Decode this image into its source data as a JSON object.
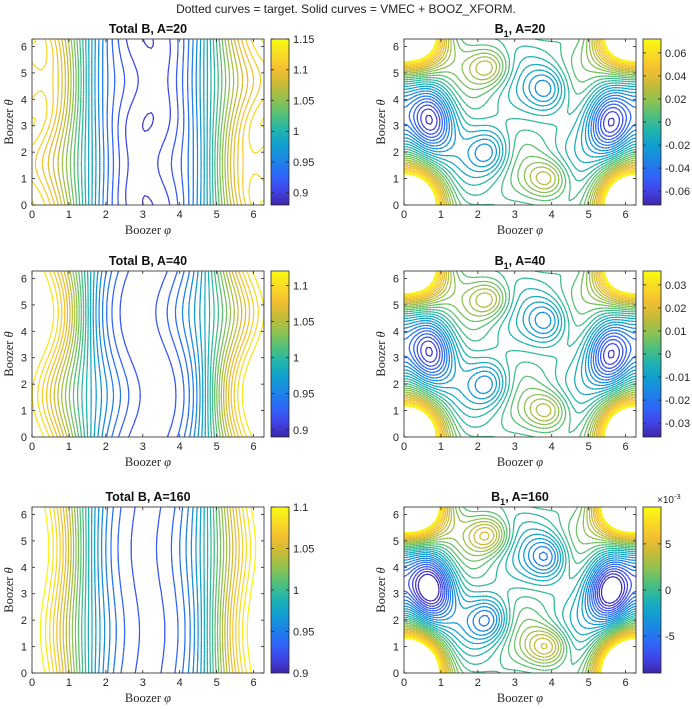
{
  "suptitle": "Dotted curves = target.  Solid curves = VMEC + BOOZ_XFORM.",
  "colormap": [
    "#3e26a8",
    "#4145ea",
    "#2e68f8",
    "#1a86e4",
    "#10a1cf",
    "#22b5ac",
    "#53c077",
    "#92c14f",
    "#c9bb37",
    "#f4bf31",
    "#f9dc25",
    "#f9fb0e"
  ],
  "axis_labels": {
    "x_main": "Boozer ",
    "x_sym": "φ",
    "y_main": "Boozer ",
    "y_sym": "θ"
  },
  "chart_data": [
    {
      "id": "p1",
      "type": "contour",
      "field": "total",
      "A": 20,
      "title_main": "Total B, A=20",
      "title_base": "",
      "title_sub": "",
      "xlim": [
        0,
        6.283
      ],
      "ylim": [
        0,
        6.283
      ],
      "xticks": [
        "0",
        "1",
        "2",
        "3",
        "4",
        "5",
        "6"
      ],
      "yticks": [
        "0",
        "1",
        "2",
        "3",
        "4",
        "5",
        "6"
      ],
      "clim": [
        0.88,
        1.15
      ],
      "cticks": [
        0.9,
        0.95,
        1.0,
        1.05,
        1.1,
        1.15
      ],
      "ctick_labels": [
        "0.9",
        "0.95",
        "1",
        "1.05",
        "1.1",
        "1.15"
      ],
      "cexp": ""
    },
    {
      "id": "p2",
      "type": "contour",
      "field": "b1",
      "A": 20,
      "title_main": "",
      "title_base": "B",
      "title_sub": "1",
      "title_rest": ", A=20",
      "xlim": [
        0,
        6.283
      ],
      "ylim": [
        0,
        6.283
      ],
      "xticks": [
        "0",
        "1",
        "2",
        "3",
        "4",
        "5",
        "6"
      ],
      "yticks": [
        "0",
        "1",
        "2",
        "3",
        "4",
        "5",
        "6"
      ],
      "clim": [
        -0.072,
        0.072
      ],
      "cticks": [
        -0.06,
        -0.04,
        -0.02,
        0,
        0.02,
        0.04,
        0.06
      ],
      "ctick_labels": [
        "-0.06",
        "-0.04",
        "-0.02",
        "0",
        "0.02",
        "0.04",
        "0.06"
      ],
      "cexp": ""
    },
    {
      "id": "p3",
      "type": "contour",
      "field": "total",
      "A": 40,
      "title_main": "Total B, A=40",
      "title_base": "",
      "title_sub": "",
      "xlim": [
        0,
        6.283
      ],
      "ylim": [
        0,
        6.283
      ],
      "xticks": [
        "0",
        "1",
        "2",
        "3",
        "4",
        "5",
        "6"
      ],
      "yticks": [
        "0",
        "1",
        "2",
        "3",
        "4",
        "5",
        "6"
      ],
      "clim": [
        0.89,
        1.12
      ],
      "cticks": [
        0.9,
        0.95,
        1.0,
        1.05,
        1.1
      ],
      "ctick_labels": [
        "0.9",
        "0.95",
        "1",
        "1.05",
        "1.1"
      ],
      "cexp": ""
    },
    {
      "id": "p4",
      "type": "contour",
      "field": "b1",
      "A": 40,
      "title_main": "",
      "title_base": "B",
      "title_sub": "1",
      "title_rest": ", A=40",
      "xlim": [
        0,
        6.283
      ],
      "ylim": [
        0,
        6.283
      ],
      "xticks": [
        "0",
        "1",
        "2",
        "3",
        "4",
        "5",
        "6"
      ],
      "yticks": [
        "0",
        "1",
        "2",
        "3",
        "4",
        "5",
        "6"
      ],
      "clim": [
        -0.036,
        0.036
      ],
      "cticks": [
        -0.03,
        -0.02,
        -0.01,
        0,
        0.01,
        0.02,
        0.03
      ],
      "ctick_labels": [
        "-0.03",
        "-0.02",
        "-0.01",
        "0",
        "0.01",
        "0.02",
        "0.03"
      ],
      "cexp": ""
    },
    {
      "id": "p5",
      "type": "contour",
      "field": "total",
      "A": 160,
      "title_main": "Total B, A=160",
      "title_base": "",
      "title_sub": "",
      "xlim": [
        0,
        6.283
      ],
      "ylim": [
        0,
        6.283
      ],
      "xticks": [
        "0",
        "1",
        "2",
        "3",
        "4",
        "5",
        "6"
      ],
      "yticks": [
        "0",
        "1",
        "2",
        "3",
        "4",
        "5",
        "6"
      ],
      "clim": [
        0.9,
        1.1
      ],
      "cticks": [
        0.9,
        0.95,
        1.0,
        1.05,
        1.1
      ],
      "ctick_labels": [
        "0.9",
        "0.95",
        "1",
        "1.05",
        "1.1"
      ],
      "cexp": ""
    },
    {
      "id": "p6",
      "type": "contour",
      "field": "b1",
      "A": 160,
      "title_main": "",
      "title_base": "B",
      "title_sub": "1",
      "title_rest": ", A=160",
      "xlim": [
        0,
        6.283
      ],
      "ylim": [
        0,
        6.283
      ],
      "xticks": [
        "0",
        "1",
        "2",
        "3",
        "4",
        "5",
        "6"
      ],
      "yticks": [
        "0",
        "1",
        "2",
        "3",
        "4",
        "5",
        "6"
      ],
      "clim": [
        -9,
        9
      ],
      "cticks": [
        -5,
        0,
        5
      ],
      "ctick_labels": [
        "-5",
        "0",
        "5"
      ],
      "cexp": "×10",
      "cexp_power": "-3"
    }
  ]
}
